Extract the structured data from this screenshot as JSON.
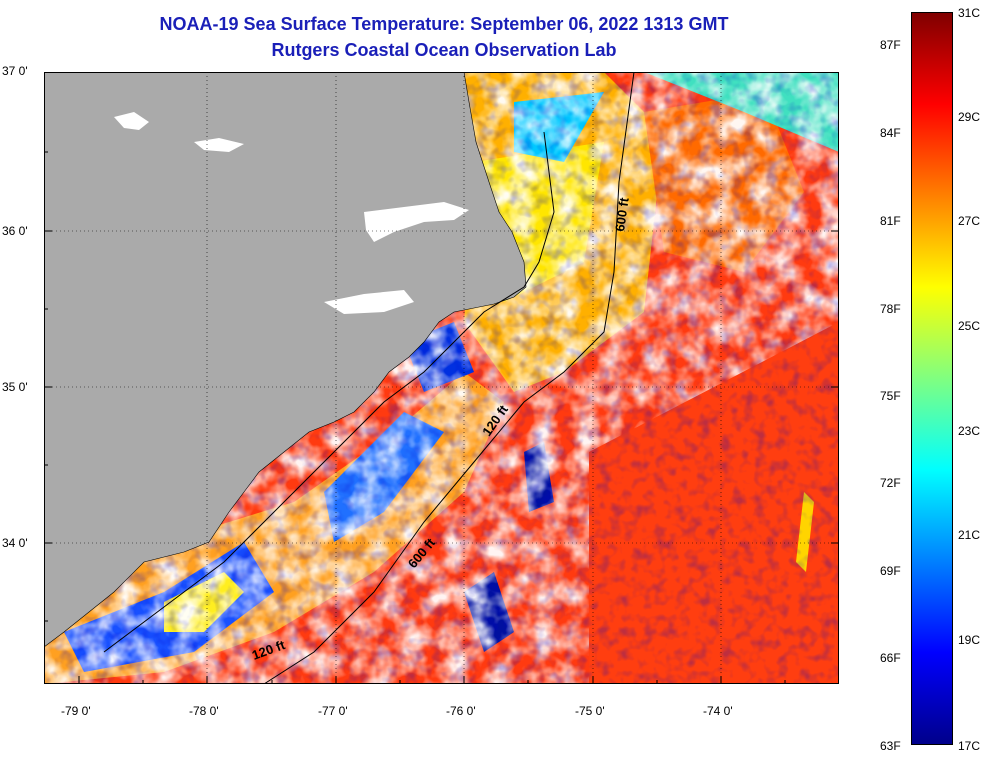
{
  "title": "NOAA-19 Sea Surface Temperature:  September 06, 2022 1313 GMT",
  "subtitle": "Rutgers Coastal Ocean Observation Lab",
  "lat_labels": [
    "37 0'",
    "36 0'",
    "35 0'",
    "34 0'"
  ],
  "lon_labels": [
    "-79 0'",
    "-78 0'",
    "-77 0'",
    "-76 0'",
    "-75 0'",
    "-74 0'"
  ],
  "contours": {
    "c600_north": "600 ft",
    "c120_mid": "120 ft",
    "c600_south": "600 ft",
    "c120_south": "120 ft"
  },
  "colorbar": {
    "f_labels": [
      "87F",
      "84F",
      "81F",
      "78F",
      "75F",
      "72F",
      "69F",
      "66F",
      "63F"
    ],
    "c_labels": [
      "31C",
      "29C",
      "27C",
      "25C",
      "23C",
      "21C",
      "19C",
      "17C"
    ],
    "stops": [
      "#00008b",
      "#0000ff",
      "#0080ff",
      "#00ffff",
      "#80ff80",
      "#ffff00",
      "#ff8000",
      "#ff0000",
      "#800000"
    ]
  },
  "colors": {
    "title": "#1a1fb8",
    "land": "#aaaaaa",
    "no_data": "#ffffff"
  },
  "map_extent": {
    "lon": [
      -79.3,
      -73.0
    ],
    "lat": [
      33.1,
      37.0
    ]
  }
}
